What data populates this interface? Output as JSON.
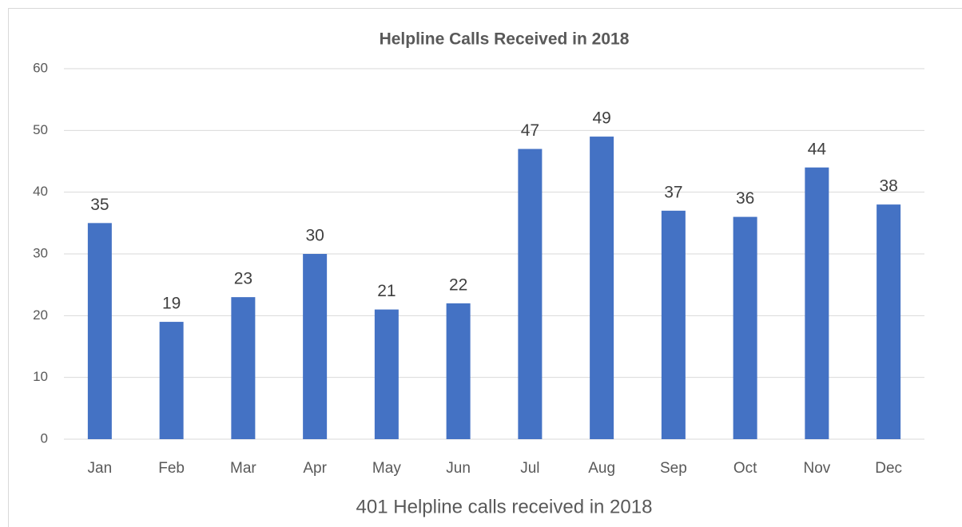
{
  "chart_data": {
    "type": "bar",
    "title": "Helpline Calls Received in 2018",
    "x_label": "401 Helpline calls received in 2018",
    "categories": [
      "Jan",
      "Feb",
      "Mar",
      "Apr",
      "May",
      "Jun",
      "Jul",
      "Aug",
      "Sep",
      "Oct",
      "Nov",
      "Dec"
    ],
    "values": [
      35,
      19,
      23,
      30,
      21,
      22,
      47,
      49,
      37,
      36,
      44,
      38
    ],
    "color": "#4472c4",
    "ylim": [
      0,
      60
    ],
    "yticks": [
      0,
      10,
      20,
      30,
      40,
      50,
      60
    ],
    "grid": true,
    "data_labels": true
  }
}
